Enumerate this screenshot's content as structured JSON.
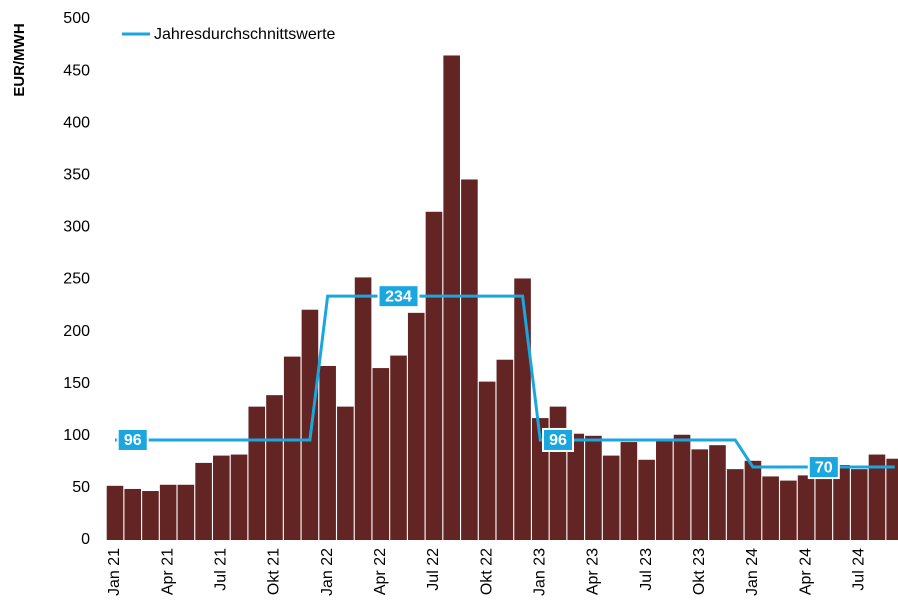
{
  "chart_data": {
    "type": "bar",
    "y_label": "EUR/MWH",
    "categories": [
      "Jan 21",
      null,
      null,
      "Apr 21",
      null,
      null,
      "Jul 21",
      null,
      null,
      "Okt 21",
      null,
      null,
      "Jan 22",
      null,
      null,
      "Apr 22",
      null,
      null,
      "Jul 22",
      null,
      null,
      "Okt 22",
      null,
      null,
      "Jan 23",
      null,
      null,
      "Apr 23",
      null,
      null,
      "Jul 23",
      null,
      null,
      "Okt 23",
      null,
      null,
      "Jan 24",
      null,
      null,
      "Apr 24",
      null,
      null,
      "Jul 24",
      null,
      null
    ],
    "series": [
      {
        "type": "bar",
        "color": "#632523",
        "values": [
          52,
          49,
          47,
          53,
          53,
          74,
          81,
          82,
          128,
          139,
          176,
          221,
          167,
          128,
          252,
          165,
          177,
          218,
          315,
          465,
          346,
          152,
          173,
          251,
          117,
          128,
          102,
          100,
          81,
          94,
          77,
          95,
          101,
          87,
          91,
          68,
          76,
          61,
          57,
          62,
          67,
          72,
          68,
          82,
          78
        ]
      },
      {
        "type": "line",
        "name": "Jahresdurchschnittswerte",
        "color": "#1aa7e0",
        "values": [
          96,
          96,
          96,
          96,
          96,
          96,
          96,
          96,
          96,
          96,
          96,
          96,
          234,
          234,
          234,
          234,
          234,
          234,
          234,
          234,
          234,
          234,
          234,
          234,
          96,
          96,
          96,
          96,
          96,
          96,
          96,
          96,
          96,
          96,
          96,
          96,
          70,
          70,
          70,
          70,
          70,
          70,
          70,
          70,
          70
        ]
      }
    ],
    "ylim": [
      0,
      500
    ],
    "yticks": [
      0,
      50,
      100,
      150,
      200,
      250,
      300,
      350,
      400,
      450,
      500
    ],
    "grid": false,
    "legend": "top-left"
  }
}
